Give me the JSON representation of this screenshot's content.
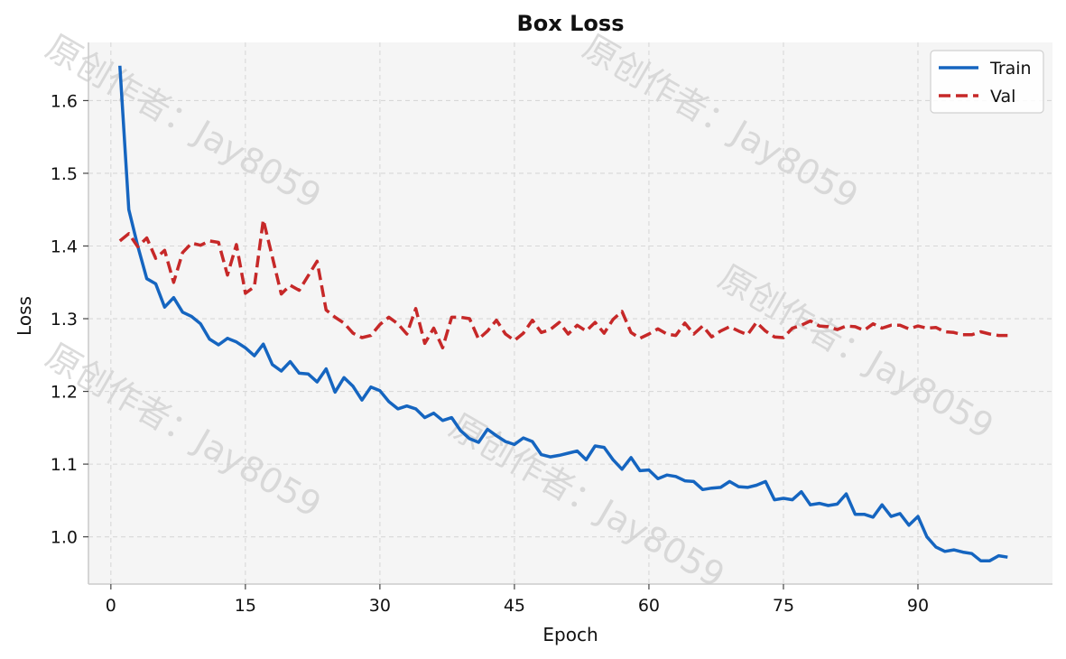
{
  "chart_data": {
    "type": "line",
    "title": "Box Loss",
    "xlabel": "Epoch",
    "ylabel": "Loss",
    "xlim": [
      -2.5,
      105
    ],
    "ylim": [
      0.935,
      1.68
    ],
    "xticks": [
      0,
      15,
      30,
      45,
      60,
      75,
      90
    ],
    "yticks": [
      1.0,
      1.1,
      1.2,
      1.3,
      1.4,
      1.5,
      1.6
    ],
    "grid": true,
    "legend_position": "top-right",
    "x": [
      1,
      2,
      3,
      4,
      5,
      6,
      7,
      8,
      9,
      10,
      11,
      12,
      13,
      14,
      15,
      16,
      17,
      18,
      19,
      20,
      21,
      22,
      23,
      24,
      25,
      26,
      27,
      28,
      29,
      30,
      31,
      32,
      33,
      34,
      35,
      36,
      37,
      38,
      39,
      40,
      41,
      42,
      43,
      44,
      45,
      46,
      47,
      48,
      49,
      50,
      51,
      52,
      53,
      54,
      55,
      56,
      57,
      58,
      59,
      60,
      61,
      62,
      63,
      64,
      65,
      66,
      67,
      68,
      69,
      70,
      71,
      72,
      73,
      74,
      75,
      76,
      77,
      78,
      79,
      80,
      81,
      82,
      83,
      84,
      85,
      86,
      87,
      88,
      89,
      90,
      91,
      92,
      93,
      94,
      95,
      96,
      97,
      98,
      99,
      100
    ],
    "series": [
      {
        "name": "Train",
        "color": "#1565c0",
        "style": "solid",
        "values": [
          1.648,
          1.45,
          1.4,
          1.355,
          1.348,
          1.316,
          1.329,
          1.309,
          1.303,
          1.293,
          1.272,
          1.264,
          1.273,
          1.268,
          1.26,
          1.249,
          1.265,
          1.237,
          1.228,
          1.241,
          1.225,
          1.224,
          1.213,
          1.231,
          1.199,
          1.219,
          1.207,
          1.188,
          1.206,
          1.201,
          1.186,
          1.176,
          1.18,
          1.176,
          1.164,
          1.17,
          1.16,
          1.164,
          1.146,
          1.135,
          1.13,
          1.148,
          1.139,
          1.131,
          1.127,
          1.136,
          1.131,
          1.113,
          1.11,
          1.112,
          1.115,
          1.118,
          1.106,
          1.125,
          1.123,
          1.106,
          1.093,
          1.109,
          1.091,
          1.092,
          1.08,
          1.085,
          1.083,
          1.077,
          1.076,
          1.065,
          1.067,
          1.068,
          1.076,
          1.069,
          1.068,
          1.071,
          1.076,
          1.051,
          1.053,
          1.051,
          1.062,
          1.044,
          1.046,
          1.043,
          1.045,
          1.059,
          1.031,
          1.031,
          1.027,
          1.044,
          1.028,
          1.032,
          1.016,
          1.028,
          1.0,
          0.986,
          0.98,
          0.982,
          0.979,
          0.977,
          0.967,
          0.967,
          0.974,
          0.972
        ]
      },
      {
        "name": "Val",
        "color": "#c62828",
        "style": "dashed",
        "values": [
          1.407,
          1.417,
          1.399,
          1.411,
          1.383,
          1.394,
          1.35,
          1.391,
          1.404,
          1.401,
          1.407,
          1.405,
          1.36,
          1.402,
          1.335,
          1.344,
          1.436,
          1.385,
          1.334,
          1.346,
          1.339,
          1.359,
          1.379,
          1.312,
          1.302,
          1.294,
          1.28,
          1.274,
          1.277,
          1.292,
          1.302,
          1.293,
          1.279,
          1.314,
          1.266,
          1.287,
          1.26,
          1.302,
          1.302,
          1.3,
          1.272,
          1.283,
          1.298,
          1.279,
          1.27,
          1.28,
          1.298,
          1.281,
          1.285,
          1.295,
          1.279,
          1.291,
          1.283,
          1.295,
          1.28,
          1.299,
          1.31,
          1.281,
          1.273,
          1.279,
          1.286,
          1.279,
          1.277,
          1.294,
          1.279,
          1.29,
          1.275,
          1.283,
          1.289,
          1.283,
          1.278,
          1.295,
          1.283,
          1.275,
          1.274,
          1.287,
          1.291,
          1.297,
          1.29,
          1.289,
          1.285,
          1.29,
          1.289,
          1.284,
          1.293,
          1.287,
          1.291,
          1.291,
          1.286,
          1.29,
          1.287,
          1.288,
          1.282,
          1.281,
          1.278,
          1.278,
          1.282,
          1.279,
          1.277,
          1.277
        ]
      }
    ],
    "watermark": "原创作者：Jay8059"
  }
}
